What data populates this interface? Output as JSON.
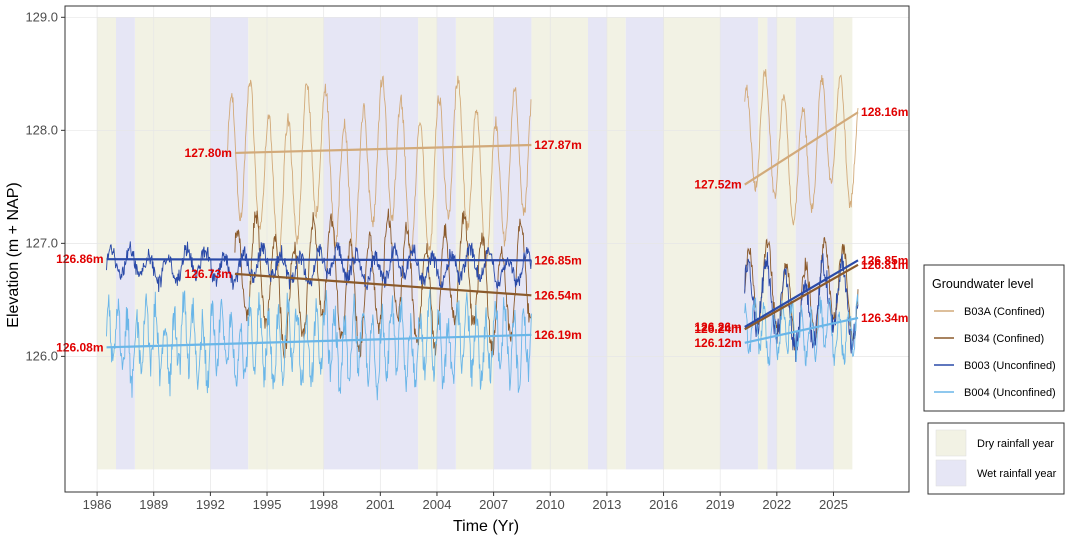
{
  "chart_data": {
    "type": "line",
    "xlabel": "Time (Yr)",
    "ylabel": "Elevation (m + NAP)",
    "xlim": [
      1984.3,
      2029.0
    ],
    "ylim": [
      124.8,
      129.1
    ],
    "x_ticks": [
      1986,
      1989,
      1992,
      1995,
      1998,
      2001,
      2004,
      2007,
      2010,
      2013,
      2016,
      2019,
      2022,
      2025
    ],
    "y_ticks": [
      126.0,
      127.0,
      128.0,
      129.0
    ],
    "y_tick_labels": [
      "126.0",
      "127.0",
      "128.0",
      "129.0"
    ],
    "grid": true,
    "legend_title": "Groundwater level",
    "legend_placement": "right",
    "series": [
      {
        "name": "B03A (Confined)",
        "color": "#d2aa7a",
        "segments": [
          {
            "start": 1992.9,
            "end": 2009.0,
            "base": 127.65,
            "amp": 0.6,
            "noise": 0.06,
            "period": 1.0,
            "phase": 0.3
          },
          {
            "start": 2020.3,
            "end": 2026.3,
            "base": 127.85,
            "amp": 0.5,
            "noise": 0.05,
            "period": 1.0,
            "phase": 1.1
          }
        ],
        "trends": [
          {
            "x": [
              1993.3,
              2009.0
            ],
            "y": [
              127.8,
              127.87
            ],
            "label_start": "127.80m",
            "label_end": "127.87m"
          },
          {
            "x": [
              2020.3,
              2026.3
            ],
            "y": [
              127.52,
              128.16
            ],
            "label_start": "127.52m",
            "label_end": "128.16m"
          }
        ]
      },
      {
        "name": "B034 (Confined)",
        "color": "#8b5a2b",
        "segments": [
          {
            "start": 1993.3,
            "end": 2009.0,
            "base": 126.65,
            "amp": 0.45,
            "noise": 0.08,
            "period": 1.0,
            "phase": 0.8
          },
          {
            "start": 2020.3,
            "end": 2026.3,
            "base": 126.55,
            "amp": 0.35,
            "noise": 0.07,
            "period": 1.0,
            "phase": 0.2
          }
        ],
        "trends": [
          {
            "x": [
              1993.3,
              2009.0
            ],
            "y": [
              126.73,
              126.54
            ],
            "label_start": "126.73m",
            "label_end": "126.54m"
          },
          {
            "x": [
              2020.3,
              2026.3
            ],
            "y": [
              126.24,
              126.81
            ],
            "label_start": "126.24m",
            "label_end": "126.81m"
          }
        ]
      },
      {
        "name": "B003 (Unconfined)",
        "color": "#2a4aa8",
        "segments": [
          {
            "start": 1986.5,
            "end": 2009.0,
            "base": 126.8,
            "amp": 0.12,
            "noise": 0.07,
            "period": 1.0,
            "phase": 0.0
          },
          {
            "start": 2020.3,
            "end": 2026.3,
            "base": 126.45,
            "amp": 0.3,
            "noise": 0.12,
            "period": 1.0,
            "phase": 0.6
          }
        ],
        "trends": [
          {
            "x": [
              1986.5,
              2009.0
            ],
            "y": [
              126.86,
              126.85
            ],
            "label_start": "126.86m",
            "label_end": "126.85m"
          },
          {
            "x": [
              2020.3,
              2026.3
            ],
            "y": [
              126.26,
              126.85
            ],
            "label_start": "126.26m",
            "label_end": "126.85m"
          }
        ]
      },
      {
        "name": "B004 (Unconfined)",
        "color": "#6ab6e8",
        "segments": [
          {
            "start": 1986.5,
            "end": 2009.0,
            "base": 126.12,
            "amp": 0.28,
            "noise": 0.14,
            "period": 0.5,
            "phase": 0.4
          },
          {
            "start": 2020.3,
            "end": 2026.3,
            "base": 126.22,
            "amp": 0.2,
            "noise": 0.1,
            "period": 0.5,
            "phase": 1.5
          }
        ],
        "trends": [
          {
            "x": [
              1986.5,
              2009.0
            ],
            "y": [
              126.08,
              126.19
            ],
            "label_start": "126.08m",
            "label_end": "126.19m"
          },
          {
            "x": [
              2020.3,
              2026.3
            ],
            "y": [
              126.12,
              126.34
            ],
            "label_start": "126.12m",
            "label_end": "126.34m"
          }
        ]
      }
    ],
    "rainfall_years": {
      "band_ylim": [
        125.0,
        129.0
      ],
      "dry_color": "#f2f2e4",
      "wet_color": "#e6e6f5",
      "dry": [
        [
          1986,
          1987
        ],
        [
          1988,
          1992
        ],
        [
          1994,
          1998
        ],
        [
          2003,
          2004
        ],
        [
          2005,
          2007
        ],
        [
          2009,
          2012
        ],
        [
          2013,
          2014
        ],
        [
          2016,
          2019
        ],
        [
          2021,
          2021.5
        ],
        [
          2022,
          2023
        ],
        [
          2025,
          2026
        ]
      ],
      "wet": [
        [
          1987,
          1988
        ],
        [
          1992,
          1994
        ],
        [
          1998,
          2003
        ],
        [
          2004,
          2005
        ],
        [
          2007,
          2009
        ],
        [
          2012,
          2013
        ],
        [
          2014,
          2016
        ],
        [
          2019,
          2021
        ],
        [
          2021.5,
          2022
        ],
        [
          2023,
          2025
        ]
      ]
    },
    "rainfall_legend": [
      {
        "label": "Dry rainfall year",
        "color": "#f2f2e4"
      },
      {
        "label": "Wet rainfall year",
        "color": "#e6e6f5"
      }
    ]
  }
}
